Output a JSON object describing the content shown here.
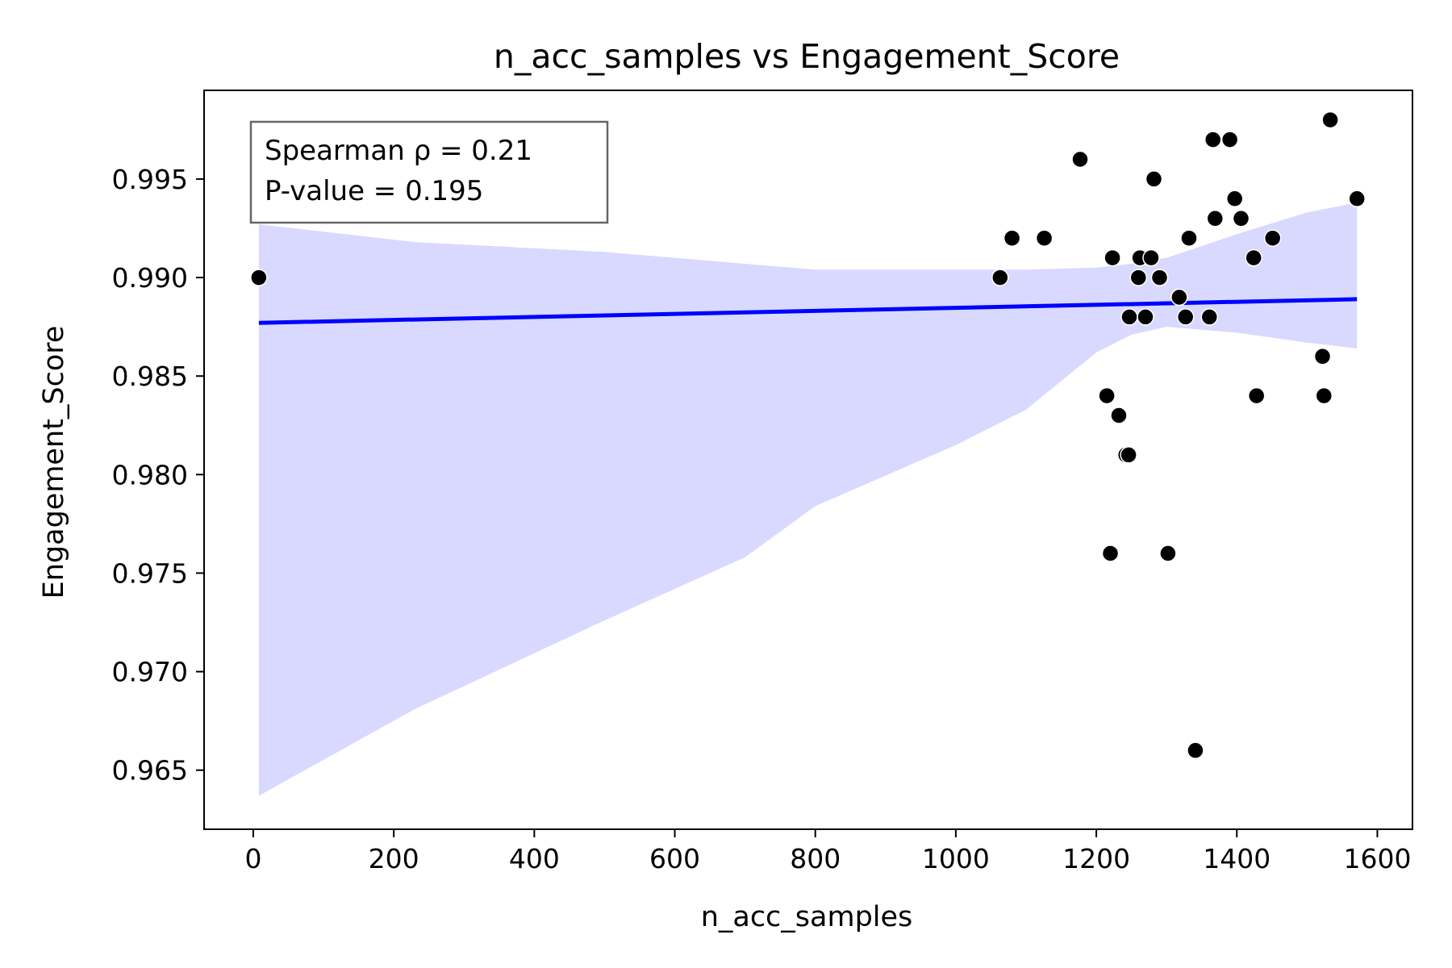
{
  "chart_data": {
    "type": "scatter",
    "title": "n_acc_samples vs Engagement_Score",
    "xlabel": "n_acc_samples",
    "ylabel": "Engagement_Score",
    "xlim": [
      -70,
      1650
    ],
    "ylim": [
      0.962,
      0.9995
    ],
    "xticks": [
      0,
      200,
      400,
      600,
      800,
      1000,
      1200,
      1400,
      1600
    ],
    "yticks": [
      0.965,
      0.97,
      0.975,
      0.98,
      0.985,
      0.99,
      0.995
    ],
    "ytick_labels": [
      "0.965",
      "0.970",
      "0.975",
      "0.980",
      "0.985",
      "0.990",
      "0.995"
    ],
    "grid": false,
    "annotation": {
      "lines": [
        "Spearman ρ = 0.21",
        "P-value = 0.195"
      ],
      "placement": "top-left"
    },
    "points": [
      {
        "x": 8,
        "y": 0.99
      },
      {
        "x": 1063,
        "y": 0.99
      },
      {
        "x": 1080,
        "y": 0.992
      },
      {
        "x": 1126,
        "y": 0.992
      },
      {
        "x": 1177,
        "y": 0.996
      },
      {
        "x": 1215,
        "y": 0.984
      },
      {
        "x": 1220,
        "y": 0.976
      },
      {
        "x": 1223,
        "y": 0.991
      },
      {
        "x": 1232,
        "y": 0.983
      },
      {
        "x": 1242,
        "y": 0.981
      },
      {
        "x": 1246,
        "y": 0.981
      },
      {
        "x": 1247,
        "y": 0.988
      },
      {
        "x": 1260,
        "y": 0.99
      },
      {
        "x": 1262,
        "y": 0.991
      },
      {
        "x": 1270,
        "y": 0.988
      },
      {
        "x": 1278,
        "y": 0.991
      },
      {
        "x": 1282,
        "y": 0.995
      },
      {
        "x": 1290,
        "y": 0.99
      },
      {
        "x": 1302,
        "y": 0.976
      },
      {
        "x": 1318,
        "y": 0.989
      },
      {
        "x": 1327,
        "y": 0.988
      },
      {
        "x": 1332,
        "y": 0.992
      },
      {
        "x": 1341,
        "y": 0.966
      },
      {
        "x": 1361,
        "y": 0.988
      },
      {
        "x": 1366,
        "y": 0.997
      },
      {
        "x": 1369,
        "y": 0.993
      },
      {
        "x": 1390,
        "y": 0.997
      },
      {
        "x": 1397,
        "y": 0.994
      },
      {
        "x": 1406,
        "y": 0.993
      },
      {
        "x": 1424,
        "y": 0.991
      },
      {
        "x": 1428,
        "y": 0.984
      },
      {
        "x": 1451,
        "y": 0.992
      },
      {
        "x": 1522,
        "y": 0.986
      },
      {
        "x": 1524,
        "y": 0.984
      },
      {
        "x": 1533,
        "y": 0.998
      },
      {
        "x": 1571,
        "y": 0.994
      }
    ],
    "regression_line": {
      "x": [
        8,
        1571
      ],
      "y": [
        0.9877,
        0.9889
      ]
    },
    "confidence_band": {
      "x": [
        8,
        230,
        500,
        700,
        800,
        1000,
        1100,
        1200,
        1250,
        1300,
        1400,
        1500,
        1571
      ],
      "upper": [
        0.9927,
        0.9918,
        0.9913,
        0.9907,
        0.9904,
        0.9904,
        0.9904,
        0.9905,
        0.9907,
        0.991,
        0.9922,
        0.9933,
        0.9938
      ],
      "lower": [
        0.9637,
        0.9681,
        0.9726,
        0.9758,
        0.9784,
        0.9815,
        0.9833,
        0.9862,
        0.9871,
        0.9875,
        0.9872,
        0.9867,
        0.9864
      ]
    },
    "colors": {
      "points": "#000000",
      "line": "#0000ff",
      "band": "#d9d9ff",
      "frame": "#000000",
      "annotation_border": "#666666"
    }
  }
}
